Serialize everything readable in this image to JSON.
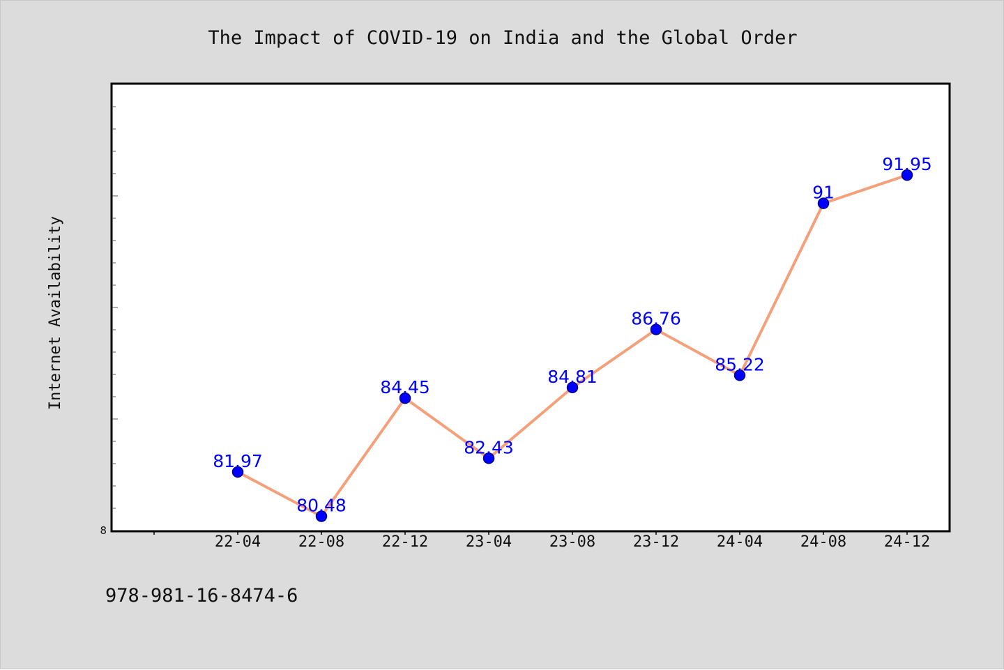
{
  "footer_text": "978-981-16-8474-6",
  "colors": {
    "background": "#dcdcdc",
    "plot_background": "#ffffff",
    "line": "#f4a07a",
    "marker": "#0000ff",
    "marker_edge": "#00008b",
    "data_label": "#0000ff"
  },
  "chart_data": {
    "type": "line",
    "title": "The Impact of COVID-19 on India and the Global Order",
    "xlabel": "",
    "ylabel": "Internet Availability",
    "categories": [
      "22-04",
      "22-08",
      "22-12",
      "23-04",
      "23-08",
      "23-12",
      "24-04",
      "24-08",
      "24-12"
    ],
    "series": [
      {
        "values": [
          81.97,
          80.48,
          84.45,
          82.43,
          84.81,
          86.76,
          85.22,
          91,
          91.95
        ]
      }
    ],
    "data_labels": [
      "81.97",
      "80.48",
      "84.45",
      "82.43",
      "84.81",
      "86.76",
      "85.22",
      "91",
      "91.95"
    ],
    "ylim": [
      80,
      95
    ],
    "ytick_labels": [
      {
        "value": 80,
        "label": "8"
      }
    ],
    "grid": false,
    "legend": "none"
  }
}
